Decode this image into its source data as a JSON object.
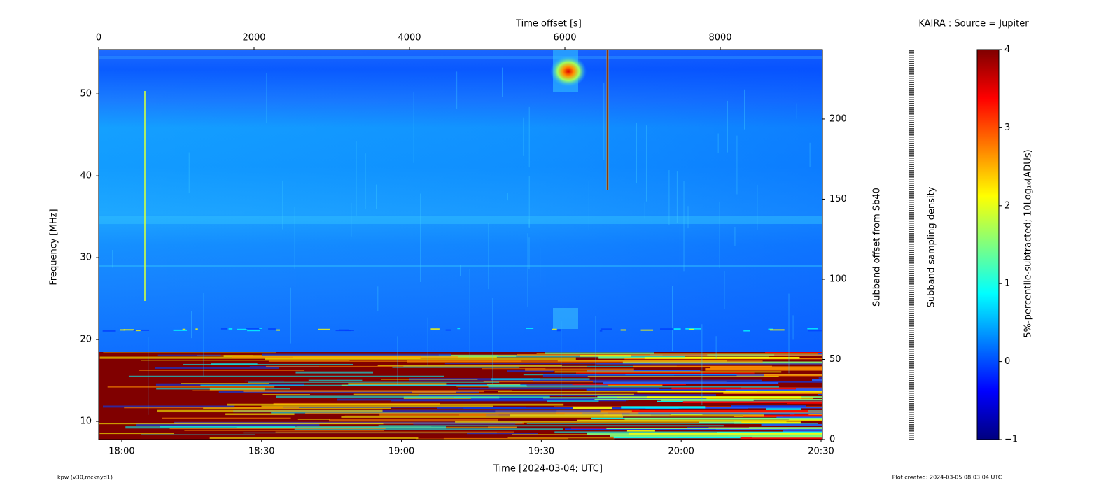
{
  "chart_data": {
    "type": "spectrogram",
    "title": "KAIRA : Source = Jupiter",
    "x_label": "Time [2024-03-04; UTC]",
    "x2_label": "Time offset [s]",
    "y_label": "Frequency [MHz]",
    "y2_label": "Subband offset from Sb40",
    "density_label": "Subband sampling density",
    "colorbar_label": "5%-percentile-subtracted; 10Log₁₀(ADUs)",
    "colormap": "jet",
    "xlim": [
      0,
      9315
    ],
    "xticks": [
      0,
      2000,
      4000,
      6000,
      8000
    ],
    "time_ticks": [
      {
        "value": 297,
        "label": "18:00"
      },
      {
        "value": 2097,
        "label": "18:30"
      },
      {
        "value": 3897,
        "label": "19:00"
      },
      {
        "value": 5697,
        "label": "19:30"
      },
      {
        "value": 7497,
        "label": "20:00"
      },
      {
        "value": 9297,
        "label": "20:30"
      }
    ],
    "ylim": [
      7.78,
      55.4
    ],
    "yticks": [
      10,
      20,
      30,
      40,
      50
    ],
    "y2lim": [
      0,
      243.2
    ],
    "y2ticks": [
      0,
      50,
      100,
      150,
      200
    ],
    "clim": [
      -1,
      4
    ],
    "cticks": [
      {
        "value": -1,
        "label": "−1"
      },
      0,
      1,
      2,
      3,
      4
    ],
    "footer_left": "kpw (v30,mckayd1)",
    "footer_right": "Plot created: 2024-03-05 08:03:04 UTC"
  }
}
